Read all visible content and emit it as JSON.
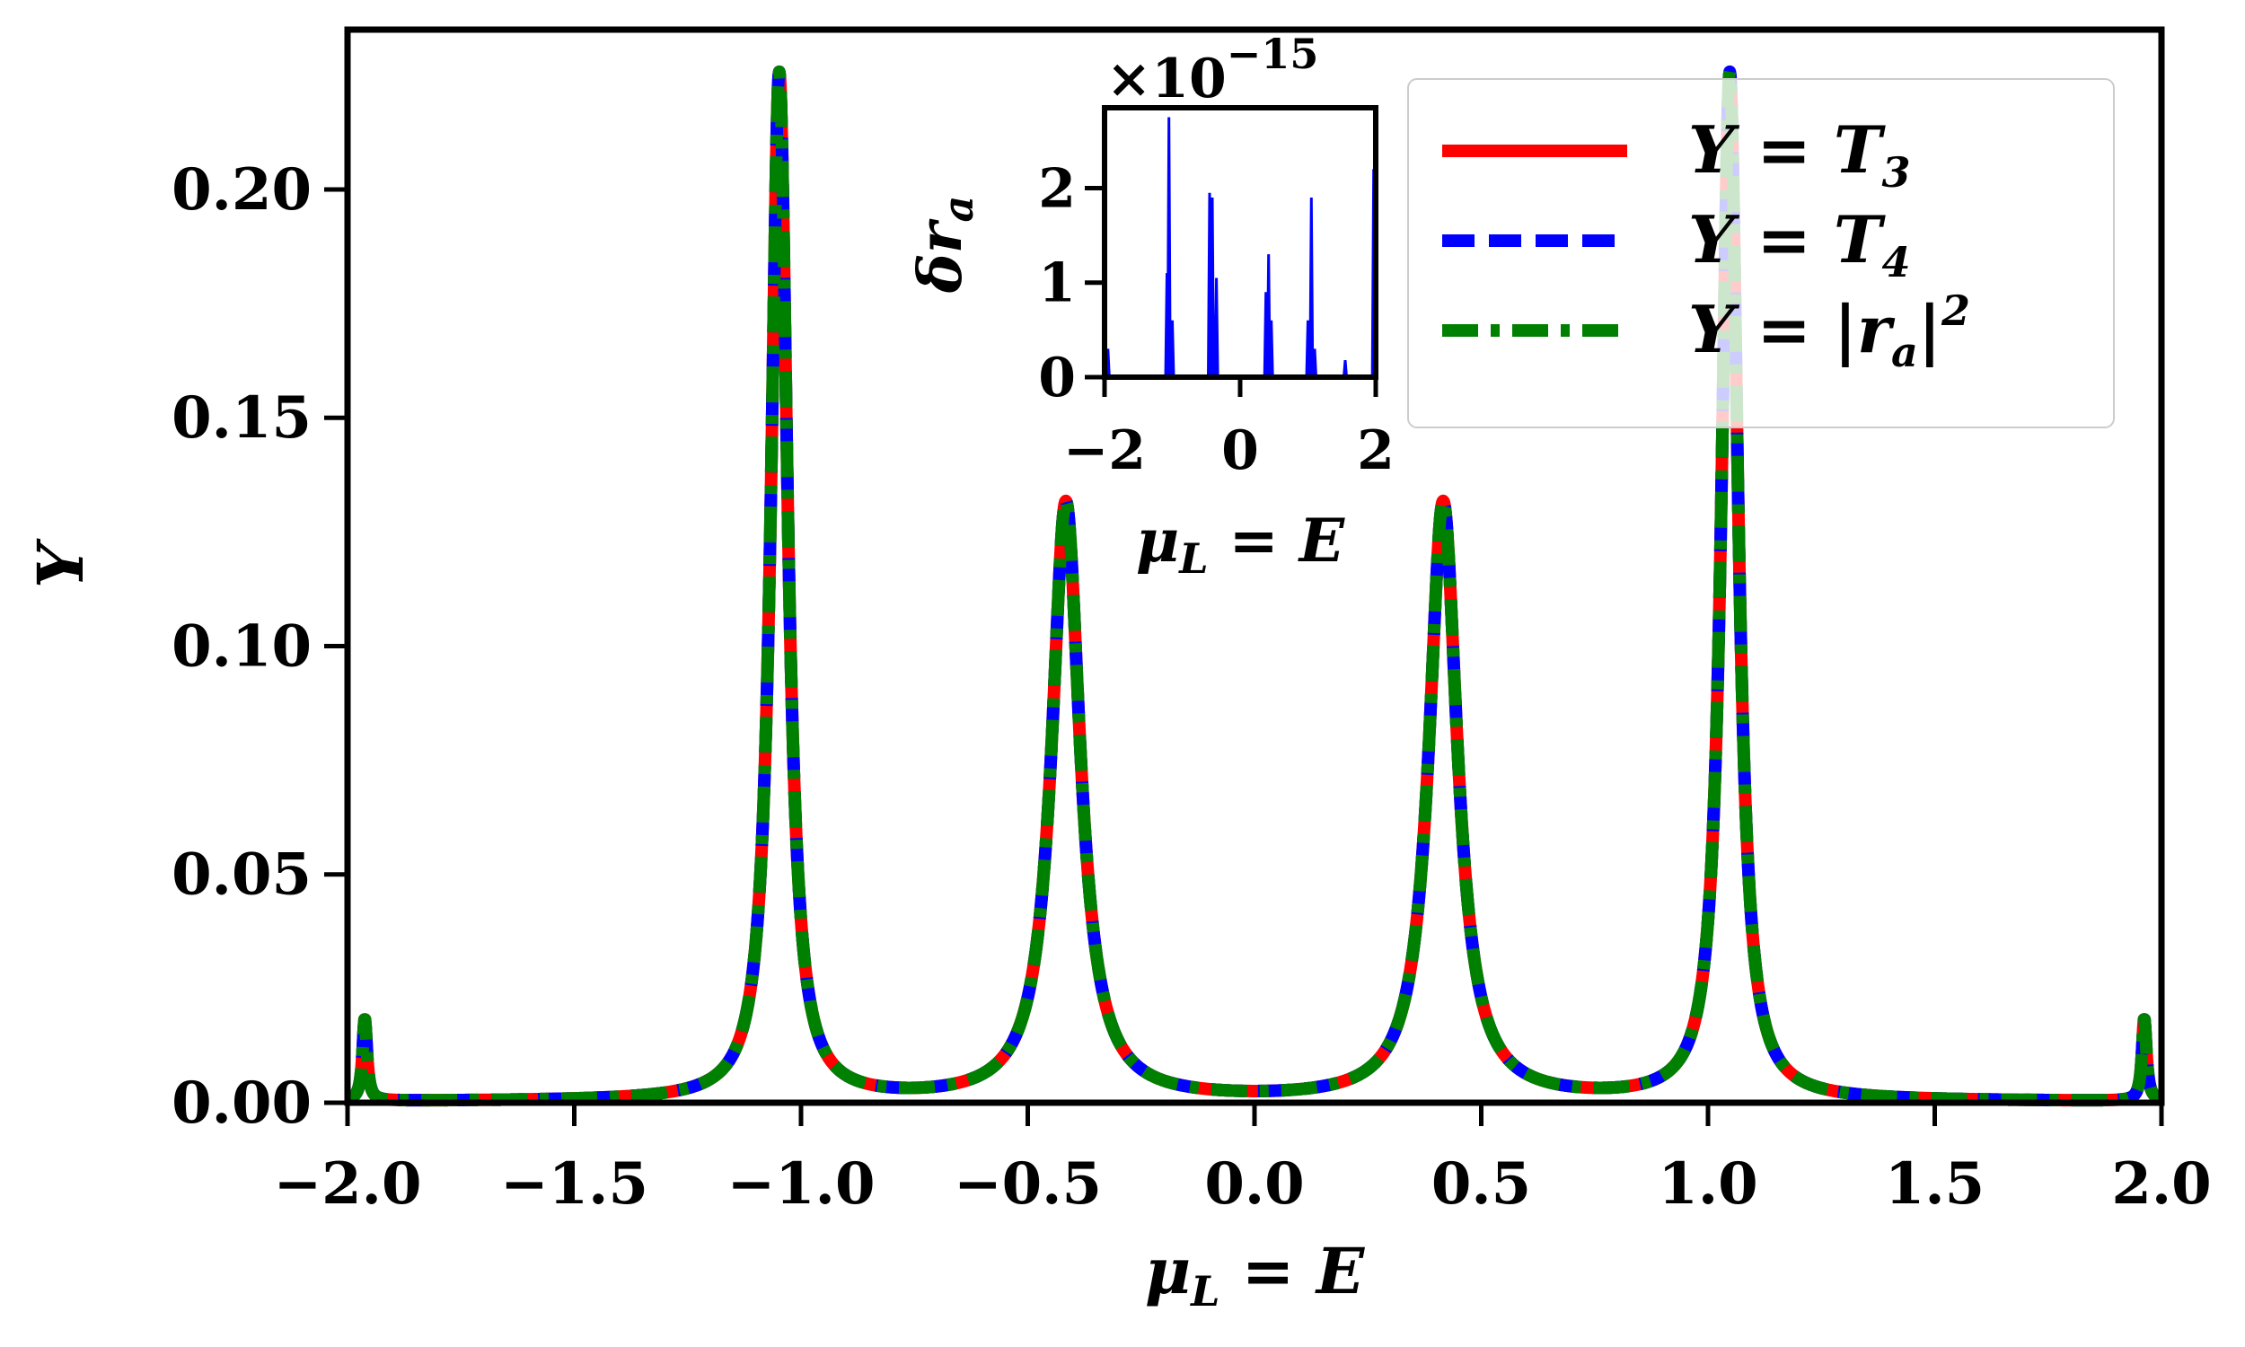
{
  "chart_data": [
    {
      "type": "line",
      "title": "",
      "xlabel_parts": {
        "symbol": "μ",
        "sub": "L",
        "rest": " = E"
      },
      "ylabel": "Y",
      "xlim": [
        -2.0,
        2.0
      ],
      "ylim": [
        0.0,
        0.235
      ],
      "xticks": [
        "−2.0",
        "−1.5",
        "−1.0",
        "−0.5",
        "0.0",
        "0.5",
        "1.0",
        "1.5",
        "2.0"
      ],
      "xtick_values": [
        -2.0,
        -1.5,
        -1.0,
        -0.5,
        0.0,
        0.5,
        1.0,
        1.5,
        2.0
      ],
      "yticks": [
        "0.00",
        "0.05",
        "0.10",
        "0.15",
        "0.20"
      ],
      "ytick_values": [
        0.0,
        0.05,
        0.1,
        0.15,
        0.2
      ],
      "grid": false,
      "legend_position": "top-right",
      "peaks": [
        {
          "center": -1.962,
          "height": 0.018,
          "width": 0.006
        },
        {
          "center": -1.048,
          "height": 0.225,
          "width": 0.022
        },
        {
          "center": -0.416,
          "height": 0.131,
          "width": 0.038
        },
        {
          "center": 0.416,
          "height": 0.131,
          "width": 0.038
        },
        {
          "center": 1.048,
          "height": 0.225,
          "width": 0.022
        },
        {
          "center": 1.962,
          "height": 0.018,
          "width": 0.006
        }
      ],
      "series": [
        {
          "name_parts": {
            "lhs": "Y",
            "rhs": "T",
            "sub": "3"
          },
          "color": "#ff0000",
          "style": "solid"
        },
        {
          "name_parts": {
            "lhs": "Y",
            "rhs": "T",
            "sub": "4"
          },
          "color": "#0000ff",
          "style": "dashed"
        },
        {
          "name_parts": {
            "lhs": "Y",
            "rhs": "|r",
            "sub": "a",
            "after": "|",
            "sup": "2"
          },
          "color": "#008000",
          "style": "dashdot"
        }
      ]
    },
    {
      "type": "line",
      "title": "",
      "offset_text": "×10",
      "offset_exp": "−15",
      "xlabel_parts": {
        "symbol": "μ",
        "sub": "L",
        "rest": " = E"
      },
      "ylabel_parts": {
        "symbol": "δr",
        "sub": "a"
      },
      "xlim": [
        -2,
        2
      ],
      "ylim": [
        0,
        2.85
      ],
      "xticks": [
        "−2",
        "0",
        "2"
      ],
      "xtick_values": [
        -2,
        0,
        2
      ],
      "yticks": [
        "0",
        "1",
        "2"
      ],
      "ytick_values": [
        0,
        1,
        2
      ],
      "color": "#0000ff",
      "spikes": [
        {
          "x": -1.95,
          "y": 0.3
        },
        {
          "x": -1.08,
          "y": 1.1
        },
        {
          "x": -1.05,
          "y": 2.75
        },
        {
          "x": -1.0,
          "y": 0.6
        },
        {
          "x": -0.45,
          "y": 1.95
        },
        {
          "x": -0.41,
          "y": 1.9
        },
        {
          "x": -0.35,
          "y": 1.05
        },
        {
          "x": 0.38,
          "y": 0.9
        },
        {
          "x": 0.42,
          "y": 1.3
        },
        {
          "x": 0.46,
          "y": 0.6
        },
        {
          "x": 1.0,
          "y": 0.6
        },
        {
          "x": 1.05,
          "y": 1.9
        },
        {
          "x": 1.1,
          "y": 0.3
        },
        {
          "x": 1.55,
          "y": 0.18
        },
        {
          "x": 1.97,
          "y": 2.2
        }
      ]
    }
  ]
}
